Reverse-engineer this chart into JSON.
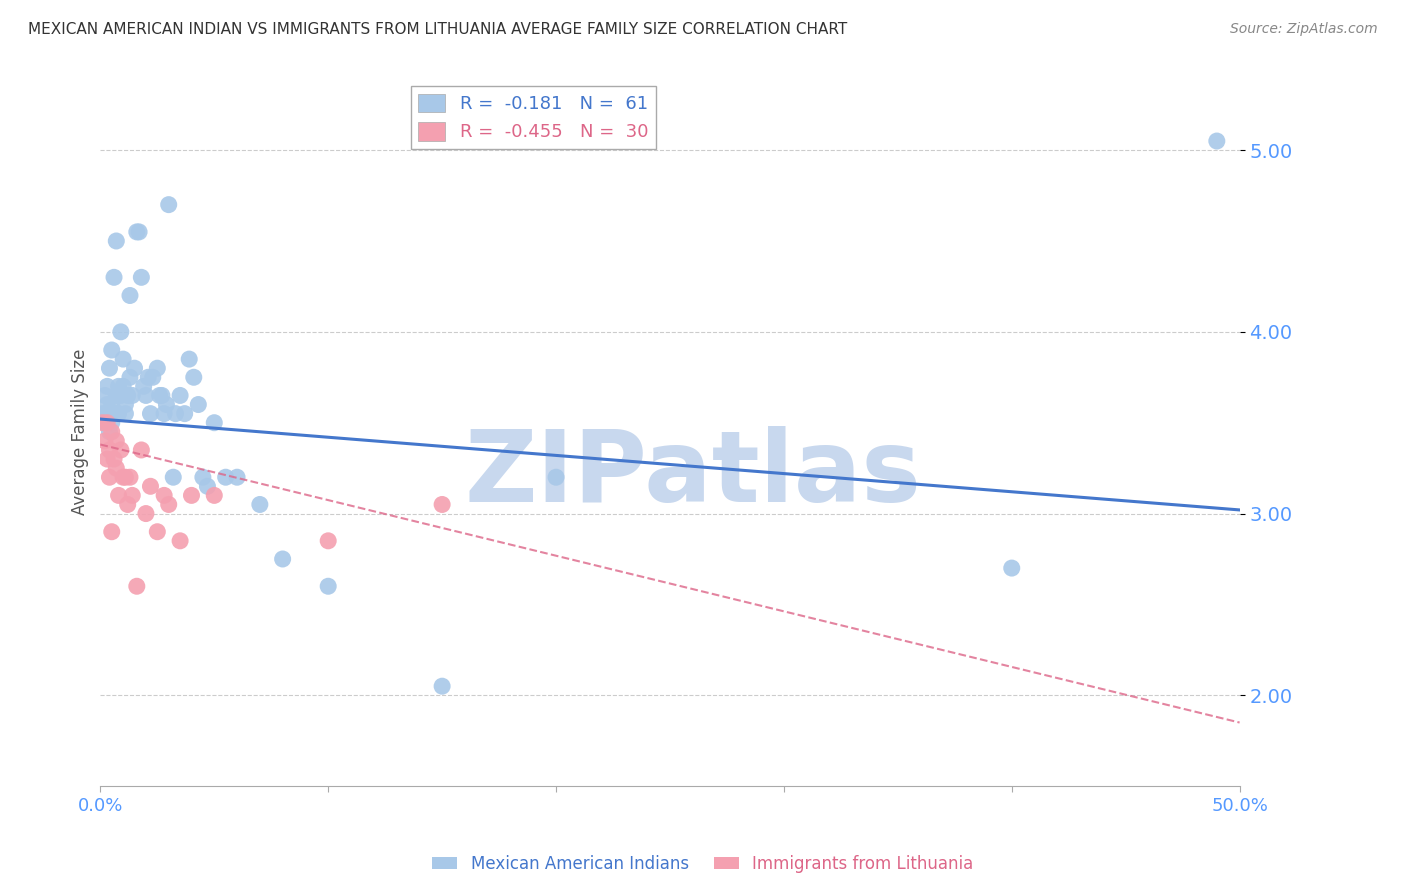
{
  "title": "MEXICAN AMERICAN INDIAN VS IMMIGRANTS FROM LITHUANIA AVERAGE FAMILY SIZE CORRELATION CHART",
  "source": "Source: ZipAtlas.com",
  "ylabel": "Average Family Size",
  "yticks": [
    2.0,
    3.0,
    4.0,
    5.0
  ],
  "blue_R": "-0.181",
  "blue_N": "61",
  "pink_R": "-0.455",
  "pink_N": "30",
  "legend_label_blue": "Mexican American Indians",
  "legend_label_pink": "Immigrants from Lithuania",
  "blue_scatter_x": [
    0.001,
    0.002,
    0.002,
    0.003,
    0.003,
    0.003,
    0.004,
    0.004,
    0.005,
    0.005,
    0.005,
    0.006,
    0.006,
    0.007,
    0.007,
    0.008,
    0.008,
    0.009,
    0.009,
    0.01,
    0.01,
    0.011,
    0.011,
    0.012,
    0.013,
    0.013,
    0.014,
    0.015,
    0.016,
    0.017,
    0.018,
    0.019,
    0.02,
    0.021,
    0.022,
    0.023,
    0.025,
    0.026,
    0.027,
    0.028,
    0.029,
    0.03,
    0.032,
    0.033,
    0.035,
    0.037,
    0.039,
    0.041,
    0.043,
    0.045,
    0.047,
    0.05,
    0.055,
    0.06,
    0.07,
    0.08,
    0.1,
    0.15,
    0.2,
    0.4,
    0.49
  ],
  "blue_scatter_y": [
    3.55,
    3.65,
    3.5,
    3.6,
    3.7,
    3.55,
    3.8,
    3.45,
    3.9,
    3.6,
    3.5,
    4.3,
    3.55,
    3.65,
    4.5,
    3.7,
    3.55,
    4.0,
    3.65,
    3.85,
    3.7,
    3.55,
    3.6,
    3.65,
    4.2,
    3.75,
    3.65,
    3.8,
    4.55,
    4.55,
    4.3,
    3.7,
    3.65,
    3.75,
    3.55,
    3.75,
    3.8,
    3.65,
    3.65,
    3.55,
    3.6,
    4.7,
    3.2,
    3.55,
    3.65,
    3.55,
    3.85,
    3.75,
    3.6,
    3.2,
    3.15,
    3.5,
    3.2,
    3.2,
    3.05,
    2.75,
    2.6,
    2.05,
    3.2,
    2.7,
    5.05
  ],
  "pink_scatter_x": [
    0.001,
    0.002,
    0.003,
    0.003,
    0.004,
    0.004,
    0.005,
    0.005,
    0.006,
    0.007,
    0.007,
    0.008,
    0.009,
    0.01,
    0.011,
    0.012,
    0.013,
    0.014,
    0.016,
    0.018,
    0.02,
    0.022,
    0.025,
    0.028,
    0.03,
    0.035,
    0.04,
    0.05,
    0.1,
    0.15
  ],
  "pink_scatter_y": [
    3.5,
    3.4,
    3.3,
    3.5,
    3.2,
    3.35,
    3.45,
    2.9,
    3.3,
    3.4,
    3.25,
    3.1,
    3.35,
    3.2,
    3.2,
    3.05,
    3.2,
    3.1,
    2.6,
    3.35,
    3.0,
    3.15,
    2.9,
    3.1,
    3.05,
    2.85,
    3.1,
    3.1,
    2.85,
    3.05
  ],
  "blue_line_x": [
    0.0,
    0.5
  ],
  "blue_line_y": [
    3.52,
    3.02
  ],
  "pink_line_x": [
    0.0,
    0.5
  ],
  "pink_line_y": [
    3.38,
    1.85
  ],
  "blue_color": "#A8C8E8",
  "pink_color": "#F4A0B0",
  "blue_line_color": "#4477CC",
  "pink_line_color": "#DD6688",
  "axis_color": "#5599FF",
  "watermark": "ZIPatlas",
  "watermark_color": "#C8D8EE",
  "xlim": [
    0.0,
    0.5
  ],
  "ylim": [
    1.5,
    5.4
  ],
  "xtick_positions": [
    0.0,
    0.1,
    0.2,
    0.3,
    0.4,
    0.5
  ],
  "xtick_labels": [
    "0.0%",
    "",
    "",
    "",
    "",
    "50.0%"
  ]
}
